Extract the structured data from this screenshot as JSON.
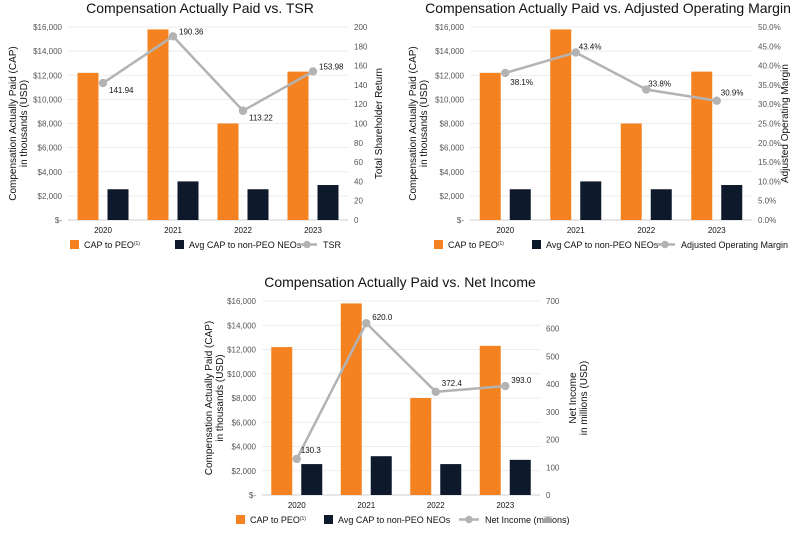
{
  "colors": {
    "peo": "#f58220",
    "non_peo": "#0e1a2b",
    "line": "#b3b3b3",
    "grid": "#e6e6e6"
  },
  "chart_data": [
    {
      "type": "bar",
      "title": "Compensation Actually Paid vs. TSR",
      "categories": [
        "2020",
        "2021",
        "2022",
        "2023"
      ],
      "ylabel_lines": [
        "Compensation Actually Paid (CAP)",
        "in thousands (USD)"
      ],
      "ylim": [
        0,
        16000
      ],
      "yticks": [
        "$-",
        "$2,000",
        "$4,000",
        "$6,000",
        "$8,000",
        "$10,000",
        "$12,000",
        "$14,000",
        "$16,000"
      ],
      "y2label_lines": [
        "Total Shareholder Return"
      ],
      "y2lim": [
        0,
        200
      ],
      "y2ticks": [
        "0",
        "20",
        "40",
        "60",
        "80",
        "100",
        "120",
        "140",
        "160",
        "180",
        "200"
      ],
      "series": [
        {
          "name": "CAP to PEO",
          "superscript": "(1)",
          "values": [
            12200,
            15800,
            8000,
            12300
          ]
        },
        {
          "name": "Avg CAP to non-PEO NEOs",
          "values": [
            2550,
            3200,
            2550,
            2900
          ]
        }
      ],
      "line": {
        "name": "TSR",
        "values": [
          141.94,
          190.36,
          113.22,
          153.98
        ],
        "labels": [
          "141.94",
          "190.36",
          "113.22",
          "153.98"
        ]
      }
    },
    {
      "type": "bar",
      "title": "Compensation Actually Paid vs. Adjusted Operating Margin",
      "categories": [
        "2020",
        "2021",
        "2022",
        "2023"
      ],
      "ylabel_lines": [
        "Compensation Actually Paid (CAP)",
        "in thousands (USD)"
      ],
      "ylim": [
        0,
        16000
      ],
      "yticks": [
        "$-",
        "$2,000",
        "$4,000",
        "$6,000",
        "$8,000",
        "$10,000",
        "$12,000",
        "$14,000",
        "$16,000"
      ],
      "y2label_lines": [
        "Adjusted Operating Margin"
      ],
      "y2lim": [
        0,
        50
      ],
      "y2ticks": [
        "0.0%",
        "5.0%",
        "10.0%",
        "15.0%",
        "20.0%",
        "25.0%",
        "30.0%",
        "35.0%",
        "40.0%",
        "45.0%",
        "50.0%"
      ],
      "series": [
        {
          "name": "CAP to PEO",
          "superscript": "(1)",
          "values": [
            12200,
            15800,
            8000,
            12300
          ]
        },
        {
          "name": "Avg CAP to non-PEO NEOs",
          "values": [
            2550,
            3200,
            2550,
            2900
          ]
        }
      ],
      "line": {
        "name": "Adjusted Operating Margin",
        "values": [
          38.1,
          43.4,
          33.8,
          30.9
        ],
        "labels": [
          "38.1%",
          "43.4%",
          "33.8%",
          "30.9%"
        ]
      }
    },
    {
      "type": "bar",
      "title": "Compensation Actually Paid vs. Net Income",
      "categories": [
        "2020",
        "2021",
        "2022",
        "2023"
      ],
      "ylabel_lines": [
        "Compensation Actually Paid (CAP)",
        "in thousands (USD)"
      ],
      "ylim": [
        0,
        16000
      ],
      "yticks": [
        "$-",
        "$2,000",
        "$4,000",
        "$6,000",
        "$8,000",
        "$10,000",
        "$12,000",
        "$14,000",
        "$16,000"
      ],
      "y2label_lines": [
        "Net Income",
        "in millions (USD)"
      ],
      "y2lim": [
        0,
        700
      ],
      "y2ticks": [
        "0",
        "100",
        "200",
        "300",
        "400",
        "500",
        "600",
        "700"
      ],
      "series": [
        {
          "name": "CAP to PEO",
          "superscript": "(1)",
          "values": [
            12200,
            15800,
            8000,
            12300
          ]
        },
        {
          "name": "Avg CAP to non-PEO NEOs",
          "values": [
            2550,
            3200,
            2550,
            2900
          ]
        }
      ],
      "line": {
        "name": "Net Income (millions)",
        "values": [
          130.3,
          620.0,
          372.4,
          393.0
        ],
        "labels": [
          "130.3",
          "620.0",
          "372.4",
          "393.0"
        ]
      }
    }
  ]
}
